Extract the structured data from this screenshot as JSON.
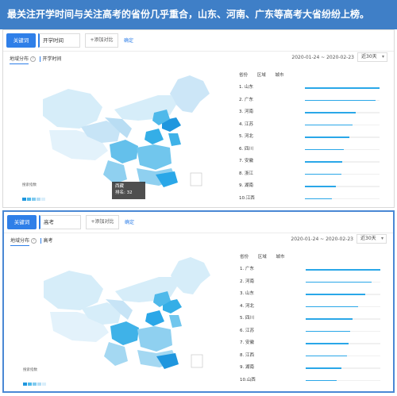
{
  "header": {
    "title": "最关注开学时间与关注高考的省份几乎重合，山东、河南、广东等高考大省纷纷上榜。"
  },
  "colors": {
    "accent": "#2f7fe8",
    "bar": "#2aa7e8",
    "header_bg": "#3f7fc7"
  },
  "panels": [
    {
      "search": {
        "keyword_button": "关键词",
        "keyword_value": "开学时间",
        "add_compare": "+添加对比",
        "confirm": "确定"
      },
      "tabs": {
        "region": "地域分布",
        "term": "开学时间"
      },
      "date_range": "2020-01-24 ~ 2020-02-23",
      "period": "近30天",
      "columns": [
        "省份",
        "区域",
        "城市"
      ],
      "tooltip": {
        "region": "西藏",
        "rank_label": "排名: 32"
      },
      "legend_title": "搜索指数",
      "ranking": [
        {
          "label": "1. 山东",
          "value": 1.0
        },
        {
          "label": "2. 广东",
          "value": 0.95
        },
        {
          "label": "3. 河南",
          "value": 0.68
        },
        {
          "label": "4. 江苏",
          "value": 0.64
        },
        {
          "label": "5. 河北",
          "value": 0.6
        },
        {
          "label": "6. 四川",
          "value": 0.52
        },
        {
          "label": "7. 安徽",
          "value": 0.5
        },
        {
          "label": "8. 浙江",
          "value": 0.49
        },
        {
          "label": "9. 湖南",
          "value": 0.42
        },
        {
          "label": "10.江西",
          "value": 0.36
        }
      ]
    },
    {
      "search": {
        "keyword_button": "关键词",
        "keyword_value": "高考",
        "add_compare": "+添加对比",
        "confirm": "确定"
      },
      "tabs": {
        "region": "地域分布",
        "term": "高考"
      },
      "date_range": "2020-01-24 ~ 2020-02-23",
      "period": "近30天",
      "columns": [
        "省份",
        "区域",
        "城市"
      ],
      "legend_title": "搜索指数",
      "ranking": [
        {
          "label": "1. 广东",
          "value": 1.0
        },
        {
          "label": "2. 河南",
          "value": 0.88
        },
        {
          "label": "3. 山东",
          "value": 0.8
        },
        {
          "label": "4. 河北",
          "value": 0.7
        },
        {
          "label": "5. 四川",
          "value": 0.63
        },
        {
          "label": "6. 江苏",
          "value": 0.6
        },
        {
          "label": "7. 安徽",
          "value": 0.57
        },
        {
          "label": "8. 江西",
          "value": 0.55
        },
        {
          "label": "9. 湖南",
          "value": 0.48
        },
        {
          "label": "10.山西",
          "value": 0.42
        }
      ]
    }
  ]
}
